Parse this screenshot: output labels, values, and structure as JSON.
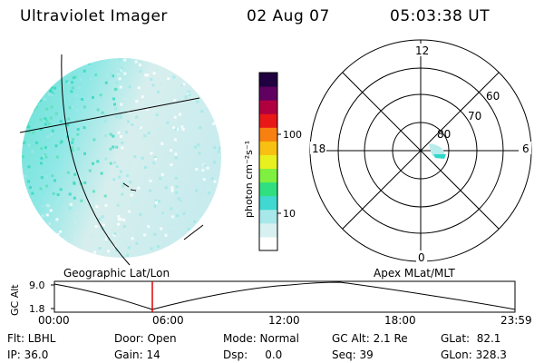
{
  "header": {
    "instrument": "Ultraviolet Imager",
    "date": "02 Aug 07",
    "time": "05:03:38 UT"
  },
  "colorbar": {
    "unit_label": "photon cm⁻²s⁻¹",
    "ticks": [
      "100",
      "10"
    ],
    "colors": [
      "#ffffff",
      "#d8f0f0",
      "#a8e8ea",
      "#40d8d0",
      "#30e080",
      "#80f040",
      "#e8f020",
      "#f8c010",
      "#f88010",
      "#e81818",
      "#b00040",
      "#600060",
      "#200040"
    ]
  },
  "globe": {
    "label": "Geographic Lat/Lon"
  },
  "polar": {
    "label": "Apex MLat/MLT",
    "mlt_labels": {
      "top": "12",
      "left": "18",
      "right": "6",
      "bottom": "0"
    },
    "lat_labels": [
      "60",
      "70",
      "80"
    ]
  },
  "timeline": {
    "y_title": "GC Alt",
    "y_ticks": [
      "9.0",
      "1.8"
    ],
    "x_ticks": [
      "00:00",
      "06:00",
      "12:00",
      "18:00",
      "23:59"
    ]
  },
  "footer": {
    "flt": "Flt: LBHL",
    "ip": "IP: 36.0",
    "door": "Door: Open",
    "gain": "Gain: 14",
    "mode": "Mode: Normal",
    "dsp": "Dsp:     0.0",
    "gcalt": "GC Alt: 2.1 Re",
    "seq": "Seq: 39",
    "glat": "GLat:  82.1",
    "glon": "GLon: 328.3"
  }
}
